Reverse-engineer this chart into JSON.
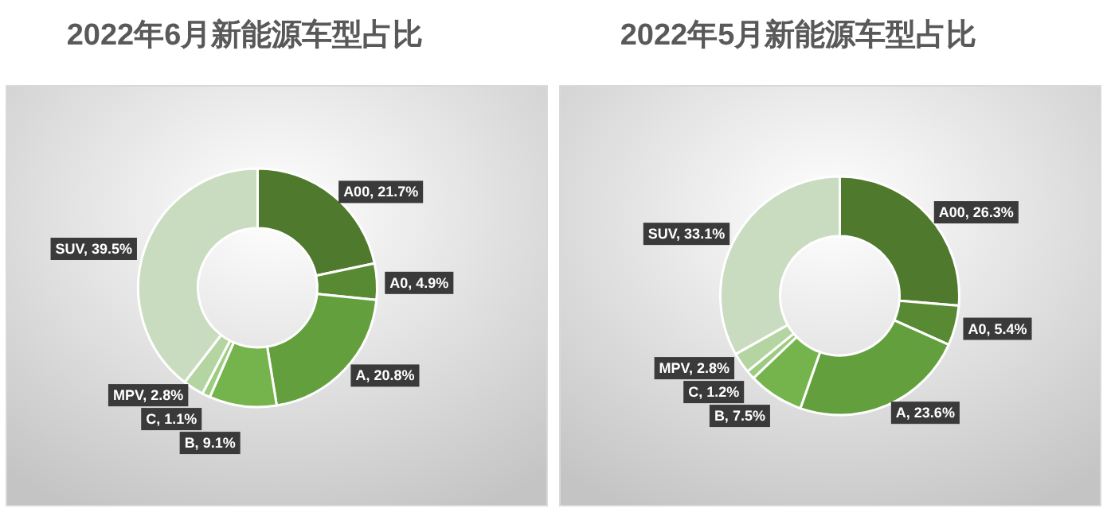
{
  "chart_data": [
    {
      "type": "donut",
      "title": "2022年6月新能源车型占比",
      "categories": [
        "A00",
        "A0",
        "A",
        "B",
        "C",
        "MPV",
        "SUV"
      ],
      "values": [
        21.7,
        4.9,
        20.8,
        9.1,
        1.1,
        2.8,
        39.5
      ],
      "colors": [
        "#4f7a2e",
        "#578a33",
        "#63a03d",
        "#75b34c",
        "#9ccc80",
        "#b4d5a2",
        "#c9dcc0"
      ],
      "value_labels": [
        "21.7%",
        "4.9%",
        "20.8%",
        "9.1%",
        "1.1%",
        "2.8%",
        "39.5%"
      ]
    },
    {
      "type": "donut",
      "title": "2022年5月新能源车型占比",
      "categories": [
        "A00",
        "A0",
        "A",
        "B",
        "C",
        "MPV",
        "SUV"
      ],
      "values": [
        26.3,
        5.4,
        23.6,
        7.5,
        1.2,
        2.8,
        33.1
      ],
      "colors": [
        "#4f7a2e",
        "#578a33",
        "#63a03d",
        "#75b34c",
        "#9ccc80",
        "#b4d5a2",
        "#c9dcc0"
      ],
      "value_labels": [
        "26.3%",
        "5.4%",
        "23.6%",
        "7.5%",
        "1.2%",
        "2.8%",
        "33.1%"
      ]
    }
  ]
}
